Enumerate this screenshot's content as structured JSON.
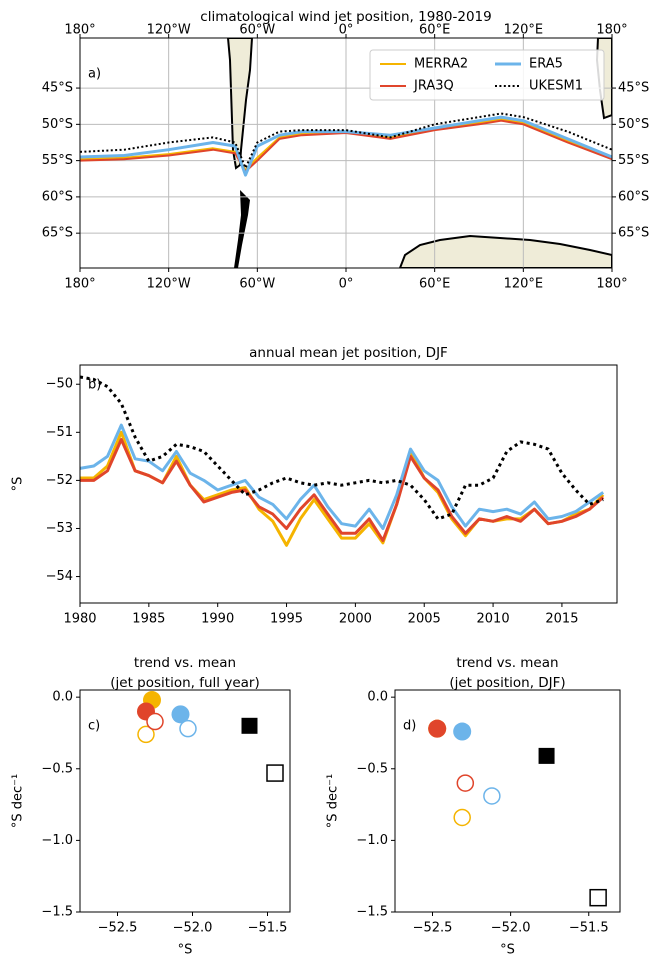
{
  "chart_data": [
    {
      "type": "line",
      "title": "climatological wind jet position, 1980-2019",
      "panel_label": "a)",
      "x": [
        -180,
        -150,
        -120,
        -90,
        -75,
        -68,
        -60,
        -45,
        -30,
        0,
        30,
        60,
        90,
        105,
        120,
        150,
        180
      ],
      "series": [
        {
          "name": "MERRA2",
          "color": "#f5b400",
          "linestyle": "solid",
          "linewidth": 2,
          "values": [
            -54.8,
            -54.6,
            -54.1,
            -53.3,
            -53.8,
            -56.3,
            -54.6,
            -51.8,
            -51.3,
            -51.0,
            -51.8,
            -50.6,
            -49.8,
            -49.3,
            -49.8,
            -52.3,
            -54.6
          ]
        },
        {
          "name": "JRA3Q",
          "color": "#e0452b",
          "linestyle": "solid",
          "linewidth": 2,
          "values": [
            -55.0,
            -54.8,
            -54.3,
            -53.5,
            -54.0,
            -56.5,
            -55.0,
            -52.0,
            -51.5,
            -51.2,
            -52.0,
            -50.8,
            -50.0,
            -49.5,
            -50.0,
            -52.5,
            -54.8
          ]
        },
        {
          "name": "ERA5",
          "color": "#6cb4ea",
          "linestyle": "solid",
          "linewidth": 3,
          "values": [
            -54.5,
            -54.3,
            -53.5,
            -52.5,
            -53.0,
            -57.0,
            -53.0,
            -51.5,
            -51.0,
            -51.0,
            -51.5,
            -50.5,
            -49.5,
            -49.0,
            -49.5,
            -52.0,
            -54.5
          ]
        },
        {
          "name": "UKESM1",
          "color": "#000000",
          "linestyle": "dotted",
          "linewidth": 2,
          "values": [
            -53.8,
            -53.5,
            -52.5,
            -51.8,
            -52.5,
            -56.0,
            -52.5,
            -51.0,
            -50.8,
            -50.8,
            -51.8,
            -50.0,
            -49.0,
            -48.5,
            -49.0,
            -51.0,
            -53.5
          ]
        }
      ],
      "xlim": [
        -180,
        180
      ],
      "ylim": [
        -69.8,
        -38.1
      ],
      "xticks": [
        {
          "value": -180,
          "label": "180°"
        },
        {
          "value": -120,
          "label": "120°W"
        },
        {
          "value": -60,
          "label": "60°W"
        },
        {
          "value": 0,
          "label": "0°"
        },
        {
          "value": 60,
          "label": "60°E"
        },
        {
          "value": 120,
          "label": "120°E"
        },
        {
          "value": 180,
          "label": "180°"
        }
      ],
      "yticks": [
        {
          "value": -45,
          "label": "45°S"
        },
        {
          "value": -50,
          "label": "50°S"
        },
        {
          "value": -55,
          "label": "55°S"
        },
        {
          "value": -60,
          "label": "60°S"
        },
        {
          "value": -65,
          "label": "65°S"
        }
      ],
      "grid": true,
      "ticks_mirrored": true,
      "legend": "upper right"
    },
    {
      "type": "line",
      "title": "annual mean jet position, DJF",
      "panel_label": "b)",
      "ylabel": "°S",
      "x": [
        1980,
        1981,
        1982,
        1983,
        1984,
        1985,
        1986,
        1987,
        1988,
        1989,
        1990,
        1991,
        1992,
        1993,
        1994,
        1995,
        1996,
        1997,
        1998,
        1999,
        2000,
        2001,
        2002,
        2003,
        2004,
        2005,
        2006,
        2007,
        2008,
        2009,
        2010,
        2011,
        2012,
        2013,
        2014,
        2015,
        2016,
        2017,
        2018
      ],
      "series": [
        {
          "color": "#f5b400",
          "linestyle": "solid",
          "linewidth": 3,
          "values": [
            -51.95,
            -51.95,
            -51.7,
            -51.0,
            -51.8,
            -51.9,
            -52.05,
            -51.5,
            -52.1,
            -52.4,
            -52.3,
            -52.2,
            -52.15,
            -52.6,
            -52.85,
            -53.35,
            -52.8,
            -52.4,
            -52.8,
            -53.2,
            -53.2,
            -52.9,
            -53.3,
            -52.5,
            -51.4,
            -51.95,
            -52.25,
            -52.8,
            -53.15,
            -52.8,
            -52.85,
            -52.8,
            -52.8,
            -52.6,
            -52.9,
            -52.85,
            -52.7,
            -52.6,
            -52.3
          ]
        },
        {
          "color": "#e0452b",
          "linestyle": "solid",
          "linewidth": 3,
          "values": [
            -52.0,
            -52.0,
            -51.8,
            -51.15,
            -51.8,
            -51.9,
            -52.05,
            -51.6,
            -52.1,
            -52.45,
            -52.35,
            -52.25,
            -52.2,
            -52.55,
            -52.7,
            -53.0,
            -52.6,
            -52.3,
            -52.7,
            -53.1,
            -53.1,
            -52.8,
            -53.25,
            -52.5,
            -51.5,
            -51.95,
            -52.2,
            -52.75,
            -53.1,
            -52.8,
            -52.85,
            -52.75,
            -52.85,
            -52.6,
            -52.9,
            -52.85,
            -52.75,
            -52.6,
            -52.35
          ]
        },
        {
          "color": "#6cb4ea",
          "linestyle": "solid",
          "linewidth": 3,
          "values": [
            -51.75,
            -51.7,
            -51.5,
            -50.85,
            -51.55,
            -51.6,
            -51.8,
            -51.4,
            -51.85,
            -52.0,
            -52.2,
            -52.1,
            -52.0,
            -52.35,
            -52.5,
            -52.8,
            -52.4,
            -52.1,
            -52.55,
            -52.9,
            -52.95,
            -52.6,
            -53.0,
            -52.3,
            -51.35,
            -51.8,
            -52.0,
            -52.55,
            -52.95,
            -52.6,
            -52.65,
            -52.6,
            -52.7,
            -52.45,
            -52.8,
            -52.75,
            -52.65,
            -52.45,
            -52.25
          ]
        },
        {
          "color": "#000000",
          "linestyle": "dotted",
          "linewidth": 3,
          "values": [
            -49.85,
            -49.9,
            -50.05,
            -50.4,
            -51.1,
            -51.6,
            -51.5,
            -51.25,
            -51.3,
            -51.4,
            -51.7,
            -52.0,
            -52.3,
            -52.2,
            -52.05,
            -51.95,
            -52.05,
            -52.1,
            -52.05,
            -52.1,
            -52.05,
            -52.0,
            -52.05,
            -52.0,
            -52.1,
            -52.4,
            -52.8,
            -52.7,
            -52.1,
            -52.1,
            -51.95,
            -51.4,
            -51.2,
            -51.25,
            -51.35,
            -51.85,
            -52.2,
            -52.5,
            -52.4
          ]
        }
      ],
      "xlim": [
        1980,
        2019
      ],
      "ylim": [
        -54.55,
        -49.6
      ],
      "xticks": [
        1980,
        1985,
        1990,
        1995,
        2000,
        2005,
        2010,
        2015
      ],
      "yticks": [
        {
          "value": -54,
          "label": "−54"
        },
        {
          "value": -53,
          "label": "−53"
        },
        {
          "value": -52,
          "label": "−52"
        },
        {
          "value": -51,
          "label": "−51"
        },
        {
          "value": -50,
          "label": "−50"
        }
      ],
      "grid": false
    },
    {
      "type": "scatter",
      "title": [
        "trend vs. mean",
        "(jet position, full year)"
      ],
      "panel_label": "c)",
      "ylabel": "°S dec⁻¹",
      "xlabel": "°S",
      "points": {
        "x": [
          -52.27,
          -52.31,
          -52.08,
          -52.31,
          -52.25,
          -52.03,
          -51.62,
          -51.45
        ],
        "y": [
          -0.02,
          -0.1,
          -0.12,
          -0.26,
          -0.17,
          -0.22,
          -0.2,
          -0.53
        ],
        "colors": [
          "#f5b400",
          "#e0452b",
          "#6cb4ea",
          "#f5b400",
          "#e0452b",
          "#6cb4ea",
          "#000000",
          "#000000"
        ],
        "filled": [
          true,
          true,
          true,
          false,
          false,
          false,
          true,
          false
        ],
        "markers": [
          "circle",
          "circle",
          "circle",
          "circle",
          "circle",
          "circle",
          "square",
          "square"
        ]
      },
      "xlim": [
        -52.75,
        -51.35
      ],
      "ylim": [
        -1.5,
        0.05
      ],
      "xticks": [
        {
          "value": -52.5,
          "label": "−52.5"
        },
        {
          "value": -52.0,
          "label": "−52.0"
        },
        {
          "value": -51.5,
          "label": "−51.5"
        }
      ],
      "yticks": [
        {
          "value": 0,
          "label": "0.0"
        },
        {
          "value": -0.5,
          "label": "−0.5"
        },
        {
          "value": -1.0,
          "label": "−1.0"
        },
        {
          "value": -1.5,
          "label": "−1.5"
        }
      ],
      "grid": false
    },
    {
      "type": "scatter",
      "title": [
        "trend vs. mean",
        "(jet position, DJF)"
      ],
      "panel_label": "d)",
      "ylabel": "°S dec⁻¹",
      "xlabel": "°S",
      "points": {
        "x": [
          -52.47,
          -52.47,
          -52.31,
          -52.31,
          -52.29,
          -52.12,
          -51.77,
          -51.44
        ],
        "y": [
          -0.22,
          -0.22,
          -0.24,
          -0.84,
          -0.6,
          -0.69,
          -0.41,
          -1.4
        ],
        "colors": [
          "#f5b400",
          "#e0452b",
          "#6cb4ea",
          "#f5b400",
          "#e0452b",
          "#6cb4ea",
          "#000000",
          "#000000"
        ],
        "filled": [
          true,
          true,
          true,
          false,
          false,
          false,
          true,
          false
        ],
        "markers": [
          "circle",
          "circle",
          "circle",
          "circle",
          "circle",
          "circle",
          "square",
          "square"
        ]
      },
      "xlim": [
        -52.74,
        -51.3
      ],
      "ylim": [
        -1.5,
        0.05
      ],
      "xticks": [
        {
          "value": -52.5,
          "label": "−52.5"
        },
        {
          "value": -52.0,
          "label": "−52.0"
        },
        {
          "value": -51.5,
          "label": "−51.5"
        }
      ],
      "yticks": [
        {
          "value": 0,
          "label": "0.0"
        },
        {
          "value": -0.5,
          "label": "−0.5"
        },
        {
          "value": -1.0,
          "label": "−1.0"
        },
        {
          "value": -1.5,
          "label": "−1.5"
        }
      ],
      "grid": false
    }
  ]
}
